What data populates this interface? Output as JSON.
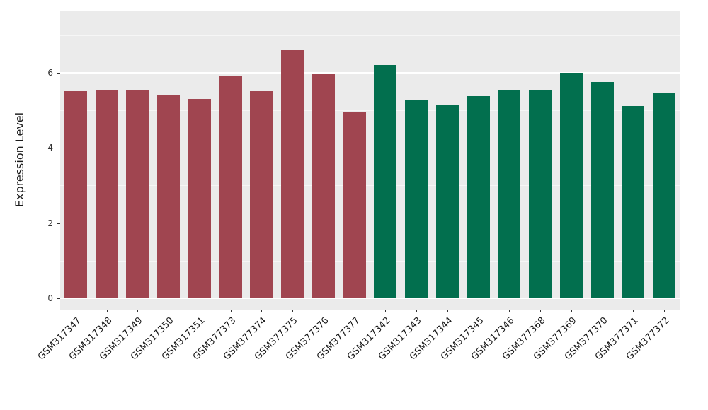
{
  "chart_data": {
    "type": "bar",
    "title": "",
    "xlabel": "",
    "ylabel": "Expression Level",
    "ylim": [
      0,
      7.6
    ],
    "yticks": [
      0,
      2,
      4,
      6
    ],
    "minor_gridlines": [
      1,
      3,
      5,
      7
    ],
    "grid": true,
    "legend_position": "none",
    "panel_background": "#EBEBEB",
    "gridline_color": "#FFFFFF",
    "tick_label_color": "#333333",
    "categories": [
      "GSM317347",
      "GSM317348",
      "GSM317349",
      "GSM317350",
      "GSM317351",
      "GSM377373",
      "GSM377374",
      "GSM377375",
      "GSM377376",
      "GSM377377",
      "GSM317342",
      "GSM317343",
      "GSM317344",
      "GSM317345",
      "GSM317346",
      "GSM377368",
      "GSM377369",
      "GSM377370",
      "GSM377371",
      "GSM377372"
    ],
    "values": [
      5.5,
      5.52,
      5.55,
      5.4,
      5.3,
      5.9,
      5.5,
      6.6,
      5.95,
      4.95,
      6.2,
      5.28,
      5.15,
      5.38,
      5.52,
      5.52,
      6.0,
      5.75,
      5.12,
      5.45
    ],
    "bar_groups": [
      "group1",
      "group1",
      "group1",
      "group1",
      "group1",
      "group1",
      "group1",
      "group1",
      "group1",
      "group1",
      "group2",
      "group2",
      "group2",
      "group2",
      "group2",
      "group2",
      "group2",
      "group2",
      "group2",
      "group2"
    ],
    "group_colors": {
      "group1": "#A04550",
      "group2": "#026F4E"
    }
  }
}
